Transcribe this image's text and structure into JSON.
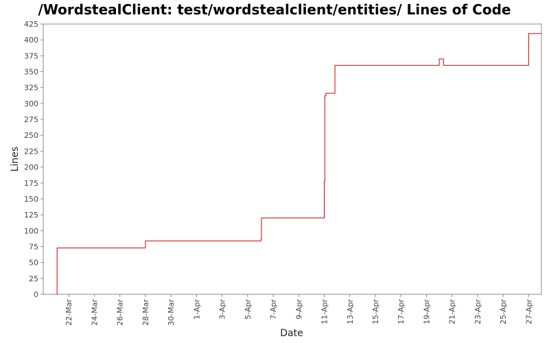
{
  "chart_data": {
    "type": "line",
    "title": "/WordstealClient: test/wordstealclient/entities/ Lines of Code",
    "xlabel": "Date",
    "ylabel": "Lines",
    "x_axis_type": "date",
    "xlim": [
      "2008-03-20",
      "2008-04-28"
    ],
    "ylim": [
      0,
      425
    ],
    "y_ticks": [
      0,
      25,
      50,
      75,
      100,
      125,
      150,
      175,
      200,
      225,
      250,
      275,
      300,
      325,
      350,
      375,
      400,
      425
    ],
    "x_ticks": [
      {
        "date": "2008-03-22",
        "label": "22-Mar"
      },
      {
        "date": "2008-03-24",
        "label": "24-Mar"
      },
      {
        "date": "2008-03-26",
        "label": "26-Mar"
      },
      {
        "date": "2008-03-28",
        "label": "28-Mar"
      },
      {
        "date": "2008-03-30",
        "label": "30-Mar"
      },
      {
        "date": "2008-04-01",
        "label": "1-Apr"
      },
      {
        "date": "2008-04-03",
        "label": "3-Apr"
      },
      {
        "date": "2008-04-05",
        "label": "5-Apr"
      },
      {
        "date": "2008-04-07",
        "label": "7-Apr"
      },
      {
        "date": "2008-04-09",
        "label": "9-Apr"
      },
      {
        "date": "2008-04-11",
        "label": "11-Apr"
      },
      {
        "date": "2008-04-13",
        "label": "13-Apr"
      },
      {
        "date": "2008-04-15",
        "label": "15-Apr"
      },
      {
        "date": "2008-04-17",
        "label": "17-Apr"
      },
      {
        "date": "2008-04-19",
        "label": "19-Apr"
      },
      {
        "date": "2008-04-21",
        "label": "21-Apr"
      },
      {
        "date": "2008-04-23",
        "label": "23-Apr"
      },
      {
        "date": "2008-04-25",
        "label": "25-Apr"
      },
      {
        "date": "2008-04-27",
        "label": "27-Apr"
      }
    ],
    "grid": false,
    "legend": "none",
    "series": [
      {
        "color": "#cc0000",
        "step": true,
        "points": [
          {
            "x": "2008-03-21T02:00",
            "y": 0
          },
          {
            "x": "2008-03-21T02:00",
            "y": 73
          },
          {
            "x": "2008-03-28T00:00",
            "y": 84
          },
          {
            "x": "2008-04-06T01:00",
            "y": 86
          },
          {
            "x": "2008-04-06T02:00",
            "y": 120
          },
          {
            "x": "2008-04-11T00:00",
            "y": 177
          },
          {
            "x": "2008-04-11T01:00",
            "y": 312
          },
          {
            "x": "2008-04-11T03:00",
            "y": 316
          },
          {
            "x": "2008-04-11T20:00",
            "y": 360
          },
          {
            "x": "2008-04-20T00:00",
            "y": 370
          },
          {
            "x": "2008-04-20T08:00",
            "y": 360
          },
          {
            "x": "2008-04-27T00:00",
            "y": 410
          },
          {
            "x": "2008-04-28T00:00",
            "y": 410
          }
        ]
      }
    ]
  }
}
